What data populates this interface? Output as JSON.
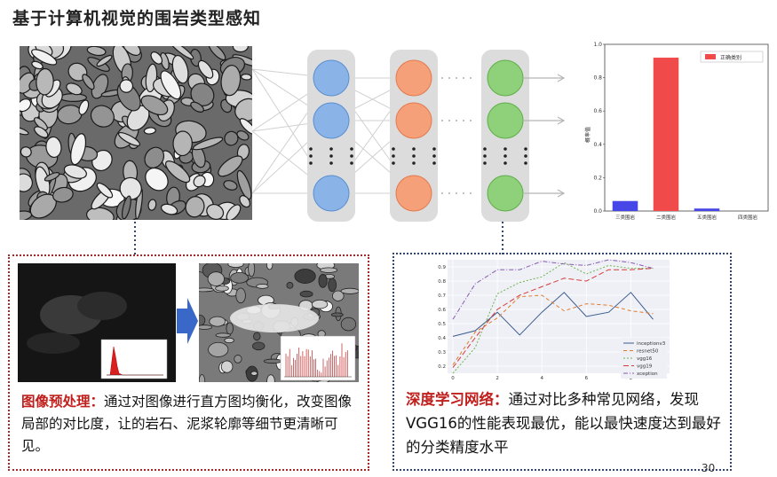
{
  "title": "基于计算机视觉的围岩类型感知",
  "bar_chart": {
    "legend": "正确类别",
    "ylabel": "概率值",
    "yticks": [
      "0.0",
      "0.2",
      "0.4",
      "0.6",
      "0.8",
      "1.0"
    ],
    "colors": {
      "correct": "#f04a4a",
      "other": "#4747e8"
    }
  },
  "line_chart": {
    "legend": [
      "inceptionv3",
      "resnet50",
      "vgg16",
      "vgg19",
      "xception"
    ],
    "yticks": [
      "0.2",
      "0.3",
      "0.4",
      "0.5",
      "0.6",
      "0.7",
      "0.8",
      "0.9"
    ],
    "xticks": [
      "0",
      "2",
      "4",
      "6",
      "8"
    ]
  },
  "chart_data": [
    {
      "type": "bar",
      "categories": [
        "三类围岩",
        "二类围岩",
        "五类围岩",
        "四类围岩"
      ],
      "values": [
        0.06,
        0.92,
        0.015,
        0.0
      ],
      "legend": "正确类别",
      "ylabel": "概率值",
      "ylim": [
        0,
        1.0
      ],
      "highlight_index": 1
    },
    {
      "type": "line",
      "x": [
        0,
        1,
        2,
        3,
        4,
        5,
        6,
        7,
        8,
        9
      ],
      "xlim": [
        0,
        9.5
      ],
      "ylim": [
        0.15,
        0.95
      ],
      "series": [
        {
          "name": "inceptionv3",
          "color": "#3b5b8c",
          "dash": "",
          "values": [
            0.41,
            0.45,
            0.58,
            0.42,
            0.58,
            0.72,
            0.55,
            0.58,
            0.72,
            0.53
          ]
        },
        {
          "name": "resnet50",
          "color": "#e07a2d",
          "dash": "4,3",
          "values": [
            0.21,
            0.44,
            0.54,
            0.69,
            0.7,
            0.59,
            0.64,
            0.63,
            0.59,
            0.57
          ]
        },
        {
          "name": "vgg16",
          "color": "#6fb34d",
          "dash": "2,2",
          "values": [
            0.15,
            0.33,
            0.71,
            0.79,
            0.83,
            0.93,
            0.85,
            0.91,
            0.89,
            0.89
          ]
        },
        {
          "name": "vgg19",
          "color": "#d63b3b",
          "dash": "6,3",
          "values": [
            0.19,
            0.4,
            0.6,
            0.7,
            0.76,
            0.82,
            0.8,
            0.88,
            0.88,
            0.89
          ]
        },
        {
          "name": "xception",
          "color": "#8a5ab0",
          "dash": "5,2,1,2",
          "values": [
            0.53,
            0.78,
            0.88,
            0.88,
            0.94,
            0.92,
            0.91,
            0.95,
            0.93,
            0.89
          ]
        }
      ]
    }
  ],
  "caption_left": {
    "keyword": "图像预处理：",
    "text": "通过对图像进行直方图均衡化，改变图像局部的对比度，让的岩石、泥浆轮廓等细节更清晰可见。"
  },
  "caption_right": {
    "keyword": "深度学习网络：",
    "text": "通过对比多种常见网络，发现VGG16的性能表现最优，能以最快速度达到最好的分类精度水平"
  },
  "page_number": "30"
}
